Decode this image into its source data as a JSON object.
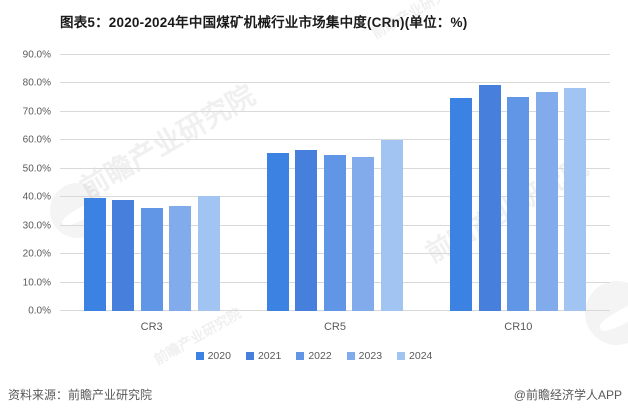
{
  "title": "图表5：2020-2024年中国煤矿机械行业市场集中度(CRn)(单位：%)",
  "chart_data": {
    "type": "bar",
    "title": "图表5：2020-2024年中国煤矿机械行业市场集中度(CRn)(单位：%)",
    "categories": [
      "CR3",
      "CR5",
      "CR10"
    ],
    "series": [
      {
        "name": "2020",
        "color": "#3b82e2",
        "values": [
          39.6,
          55.7,
          74.9
        ]
      },
      {
        "name": "2021",
        "color": "#4680dc",
        "values": [
          39.2,
          56.5,
          79.4
        ]
      },
      {
        "name": "2022",
        "color": "#6096e5",
        "values": [
          36.3,
          54.8,
          75.3
        ]
      },
      {
        "name": "2023",
        "color": "#81abeb",
        "values": [
          36.8,
          54.1,
          76.9
        ]
      },
      {
        "name": "2024",
        "color": "#a2c4f2",
        "values": [
          40.6,
          60.0,
          78.3
        ]
      }
    ],
    "ylim": [
      0,
      90
    ],
    "ytick_step": 10,
    "yticks": [
      "0.0%",
      "10.0%",
      "20.0%",
      "30.0%",
      "40.0%",
      "50.0%",
      "60.0%",
      "70.0%",
      "80.0%",
      "90.0%"
    ],
    "grid": true,
    "gridline_color": "#d9d9d9",
    "axis_label_color": "#595959",
    "legend_position": "bottom",
    "xlabel": "",
    "ylabel": ""
  },
  "footer": {
    "source": "资料来源：前瞻产业研究院",
    "credit": "@前瞻经济学人APP"
  },
  "watermark": {
    "text": "前瞻产业研究院"
  }
}
